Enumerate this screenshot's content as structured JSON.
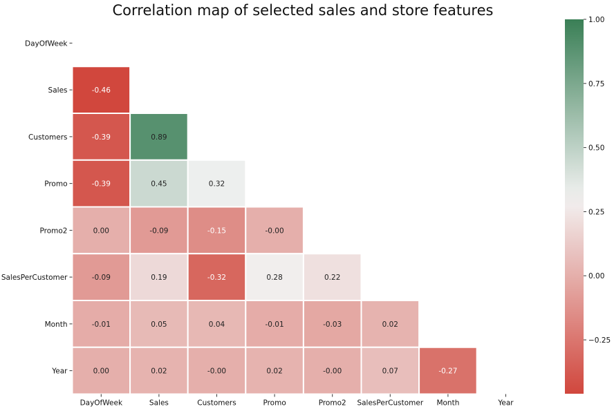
{
  "chart_data": {
    "type": "heatmap",
    "title": "Correlation map of selected sales and store features",
    "row_labels": [
      "DayOfWeek",
      "Sales",
      "Customers",
      "Promo",
      "Promo2",
      "SalesPerCustomer",
      "Month",
      "Year"
    ],
    "col_labels": [
      "DayOfWeek",
      "Sales",
      "Customers",
      "Promo",
      "Promo2",
      "SalesPerCustomer",
      "Month",
      "Year"
    ],
    "mask": "upper triangle including diagonal",
    "values": [
      [
        null,
        null,
        null,
        null,
        null,
        null,
        null,
        null
      ],
      [
        -0.46,
        null,
        null,
        null,
        null,
        null,
        null,
        null
      ],
      [
        -0.39,
        0.89,
        null,
        null,
        null,
        null,
        null,
        null
      ],
      [
        -0.39,
        0.45,
        0.32,
        null,
        null,
        null,
        null,
        null
      ],
      [
        0.0,
        -0.09,
        -0.15,
        -0.0,
        null,
        null,
        null,
        null
      ],
      [
        -0.09,
        0.19,
        -0.32,
        0.28,
        0.22,
        null,
        null,
        null
      ],
      [
        -0.01,
        0.05,
        0.04,
        -0.01,
        -0.03,
        0.02,
        null,
        null
      ],
      [
        0.0,
        0.02,
        -0.0,
        0.02,
        -0.0,
        0.07,
        -0.27,
        null
      ]
    ],
    "value_labels": [
      [],
      [
        "-0.46"
      ],
      [
        "-0.39",
        "0.89"
      ],
      [
        "-0.39",
        "0.45",
        "0.32"
      ],
      [
        "0.00",
        "-0.09",
        "-0.15",
        "-0.00"
      ],
      [
        "-0.09",
        "0.19",
        "-0.32",
        "0.28",
        "0.22"
      ],
      [
        "-0.01",
        "0.05",
        "0.04",
        "-0.01",
        "-0.03",
        "0.02"
      ],
      [
        "0.00",
        "0.02",
        "-0.00",
        "0.02",
        "-0.00",
        "0.07",
        "-0.27"
      ]
    ],
    "colorbar": {
      "vmin": -0.46,
      "vmax": 1.0,
      "center": 0.3,
      "ticks": [
        1.0,
        0.75,
        0.5,
        0.25,
        0.0,
        -0.25
      ],
      "tick_labels": [
        "1.00",
        "0.75",
        "0.50",
        "0.25",
        "0.00",
        "−0.25"
      ]
    },
    "colors": {
      "low": "#d1473d",
      "mid": "#f2f2f2",
      "high": "#3a7f56",
      "text_dark": "#222222",
      "text_light": "#ffffff"
    },
    "grid": false
  }
}
